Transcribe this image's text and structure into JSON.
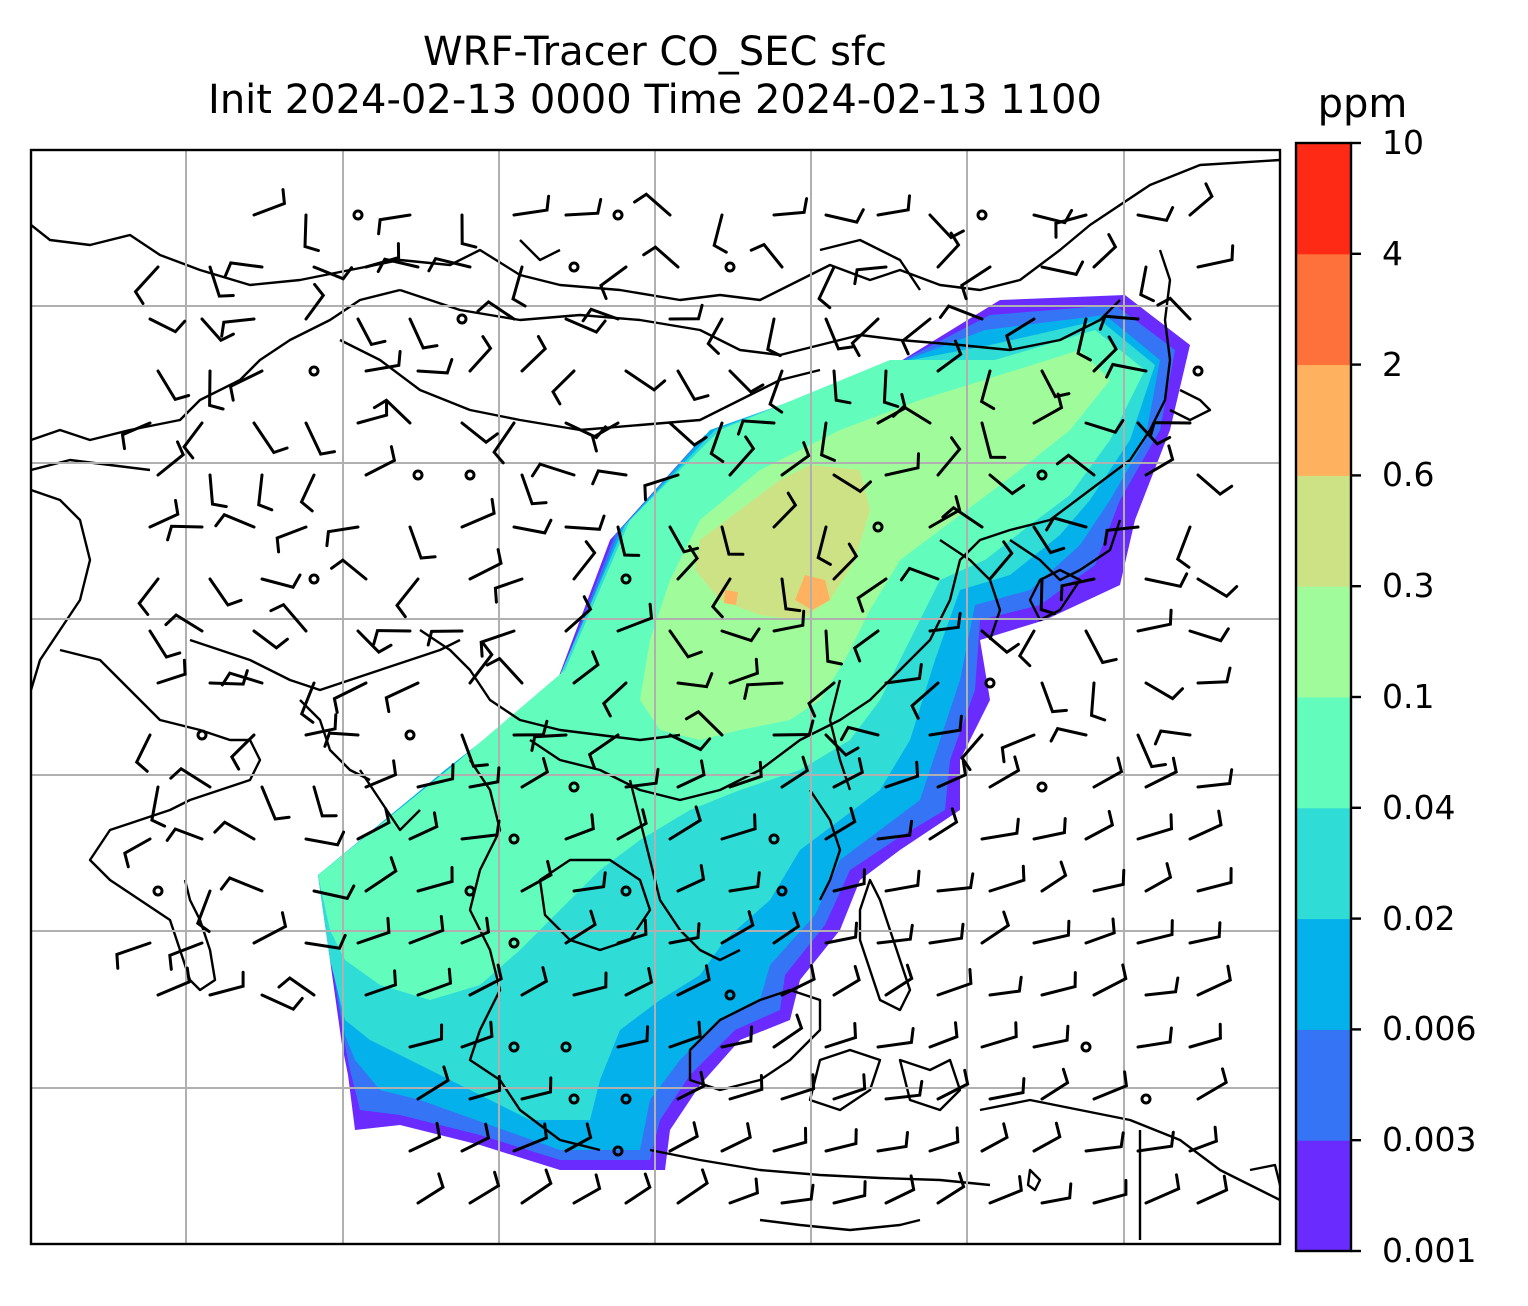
{
  "title_line1": "WRF-Tracer CO_SEC sfc",
  "title_line2": "Init 2024-02-13 0000 Time 2024-02-13 1100",
  "colorbar": {
    "unit": "ppm",
    "levels": [
      "0.001",
      "0.003",
      "0.006",
      "0.02",
      "0.04",
      "0.1",
      "0.3",
      "0.6",
      "2",
      "4",
      "10"
    ],
    "colors": [
      "#6a2bff",
      "#3575f5",
      "#05b1ea",
      "#2fdcd6",
      "#62fdbd",
      "#a0fc9a",
      "#cde285",
      "#feb25f",
      "#fe713a",
      "#ff2a15"
    ]
  },
  "legend_note": ""
}
